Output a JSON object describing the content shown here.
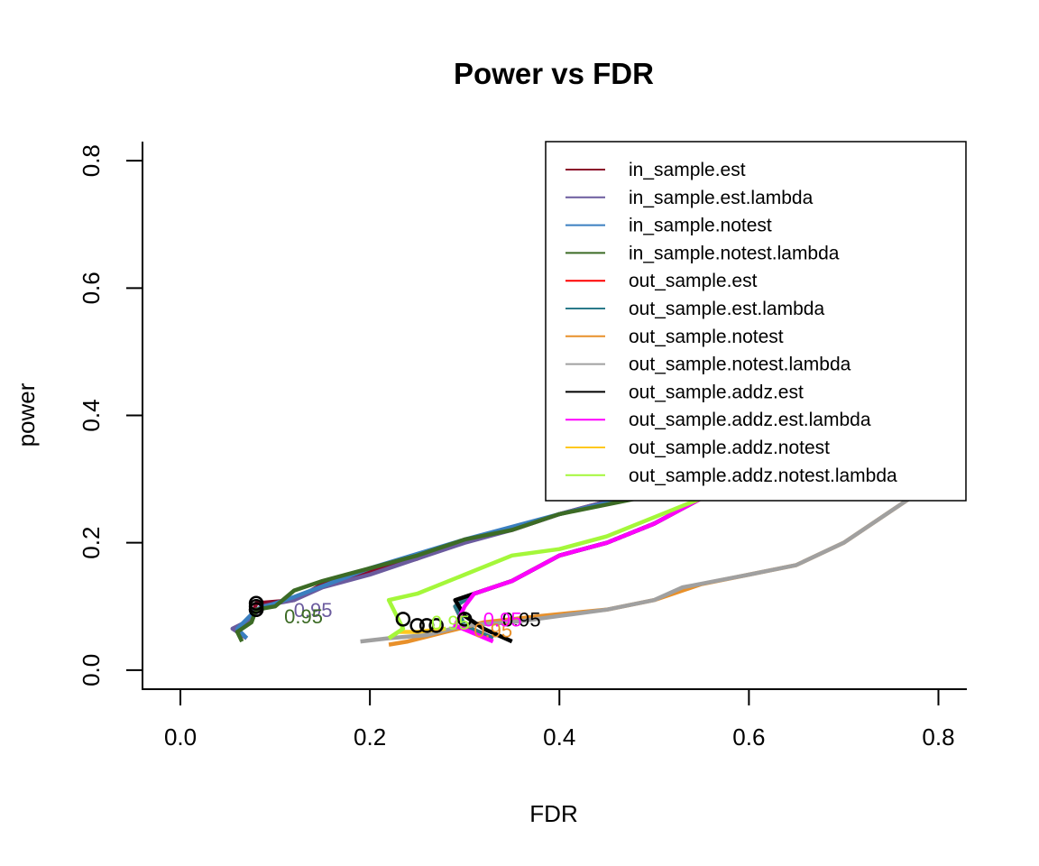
{
  "chart_data": {
    "type": "line",
    "title": "Power vs FDR",
    "xlabel": "FDR",
    "ylabel": "power",
    "xlim": [
      -0.04,
      0.83
    ],
    "ylim": [
      -0.03,
      0.83
    ],
    "xticks": [
      "0.0",
      "0.2",
      "0.4",
      "0.6",
      "0.8"
    ],
    "xtick_values": [
      0.0,
      0.2,
      0.4,
      0.6,
      0.8
    ],
    "yticks": [
      "0.0",
      "0.2",
      "0.4",
      "0.6",
      "0.8"
    ],
    "ytick_values": [
      0.0,
      0.2,
      0.4,
      0.6,
      0.8
    ],
    "legend_position": "top-right",
    "series": [
      {
        "name": "in_sample.est",
        "color": "#8B0A2A",
        "x": [
          0.07,
          0.06,
          0.075,
          0.08,
          0.12,
          0.15,
          0.2,
          0.25,
          0.3,
          0.35,
          0.4,
          0.45,
          0.5,
          0.55
        ],
        "y": [
          0.05,
          0.06,
          0.08,
          0.105,
          0.11,
          0.135,
          0.155,
          0.175,
          0.205,
          0.22,
          0.245,
          0.265,
          0.28,
          0.29
        ],
        "marker": [
          0.08,
          0.105
        ],
        "marker_label": "",
        "label_pos": [
          0.14,
          0.095
        ]
      },
      {
        "name": "in_sample.est.lambda",
        "color": "#6B5B9E",
        "x": [
          0.07,
          0.055,
          0.075,
          0.085,
          0.12,
          0.15,
          0.2,
          0.25,
          0.3,
          0.35,
          0.4,
          0.45,
          0.5,
          0.55
        ],
        "y": [
          0.05,
          0.065,
          0.08,
          0.1,
          0.11,
          0.13,
          0.15,
          0.175,
          0.2,
          0.22,
          0.245,
          0.265,
          0.28,
          0.29
        ],
        "marker": [
          0.08,
          0.1
        ],
        "marker_label": "0.95",
        "label_pos": [
          0.14,
          0.095
        ]
      },
      {
        "name": "in_sample.notest",
        "color": "#3A7FC0",
        "x": [
          0.07,
          0.06,
          0.08,
          0.12,
          0.2,
          0.3,
          0.4,
          0.5,
          0.55
        ],
        "y": [
          0.05,
          0.065,
          0.095,
          0.115,
          0.16,
          0.205,
          0.245,
          0.28,
          0.29
        ],
        "marker": [
          0.08,
          0.095
        ],
        "marker_label": "",
        "label_pos": [
          0.13,
          0.085
        ]
      },
      {
        "name": "in_sample.notest.lambda",
        "color": "#3C6B25",
        "x": [
          0.065,
          0.06,
          0.075,
          0.08,
          0.1,
          0.12,
          0.15,
          0.2,
          0.25,
          0.3,
          0.35,
          0.4,
          0.45,
          0.5,
          0.55
        ],
        "y": [
          0.045,
          0.06,
          0.075,
          0.095,
          0.1,
          0.125,
          0.14,
          0.16,
          0.18,
          0.205,
          0.22,
          0.245,
          0.26,
          0.275,
          0.29
        ],
        "marker": [
          0.08,
          0.095
        ],
        "marker_label": "0.95",
        "label_pos": [
          0.13,
          0.085
        ]
      },
      {
        "name": "out_sample.est",
        "color": "#FF0000",
        "x": [
          0.33,
          0.3,
          0.29,
          0.31,
          0.35,
          0.4,
          0.45,
          0.5,
          0.55
        ],
        "y": [
          0.05,
          0.07,
          0.1,
          0.12,
          0.14,
          0.18,
          0.2,
          0.23,
          0.27
        ],
        "marker": [],
        "marker_label": "",
        "label_pos": []
      },
      {
        "name": "out_sample.est.lambda",
        "color": "#2A7A8A",
        "x": [
          0.33,
          0.3,
          0.29,
          0.31,
          0.35,
          0.4,
          0.45,
          0.5,
          0.55
        ],
        "y": [
          0.05,
          0.07,
          0.1,
          0.12,
          0.14,
          0.18,
          0.2,
          0.23,
          0.27
        ],
        "marker": [],
        "marker_label": "",
        "label_pos": []
      },
      {
        "name": "out_sample.notest",
        "color": "#E8902A",
        "x": [
          0.22,
          0.24,
          0.28,
          0.32,
          0.38,
          0.45,
          0.5,
          0.55,
          0.6,
          0.65,
          0.7,
          0.75,
          0.8
        ],
        "y": [
          0.04,
          0.045,
          0.06,
          0.075,
          0.085,
          0.095,
          0.11,
          0.135,
          0.15,
          0.165,
          0.2,
          0.25,
          0.3
        ],
        "marker": [
          0.27,
          0.07
        ],
        "marker_label": "0.95",
        "label_pos": [
          0.33,
          0.063
        ]
      },
      {
        "name": "out_sample.notest.lambda",
        "color": "#A0A0A0",
        "x": [
          0.19,
          0.22,
          0.26,
          0.3,
          0.35,
          0.4,
          0.45,
          0.5,
          0.53,
          0.6,
          0.65,
          0.7,
          0.75,
          0.8
        ],
        "y": [
          0.045,
          0.05,
          0.055,
          0.07,
          0.075,
          0.085,
          0.095,
          0.11,
          0.13,
          0.15,
          0.165,
          0.2,
          0.25,
          0.3
        ],
        "marker": [
          0.26,
          0.07
        ],
        "marker_label": "",
        "label_pos": []
      },
      {
        "name": "out_sample.addz.est",
        "color": "#000000",
        "x": [
          0.35,
          0.32,
          0.3,
          0.29,
          0.31,
          0.35,
          0.4,
          0.45,
          0.5,
          0.55
        ],
        "y": [
          0.045,
          0.065,
          0.085,
          0.11,
          0.12,
          0.14,
          0.18,
          0.2,
          0.23,
          0.27
        ],
        "marker": [
          0.25,
          0.07
        ],
        "marker_label": "0.95",
        "label_pos": [
          0.36,
          0.08
        ]
      },
      {
        "name": "out_sample.addz.est.lambda",
        "color": "#FF00FF",
        "x": [
          0.33,
          0.29,
          0.3,
          0.31,
          0.35,
          0.4,
          0.45,
          0.5,
          0.55
        ],
        "y": [
          0.045,
          0.07,
          0.1,
          0.12,
          0.14,
          0.18,
          0.2,
          0.23,
          0.27
        ],
        "marker": [
          0.3,
          0.08
        ],
        "marker_label": "0.95",
        "label_pos": [
          0.34,
          0.08
        ]
      },
      {
        "name": "out_sample.addz.notest",
        "color": "#FFC81E",
        "x": [
          0.22,
          0.23,
          0.25,
          0.28
        ],
        "y": [
          0.05,
          0.06,
          0.06,
          0.065
        ],
        "marker": [],
        "marker_label": "",
        "label_pos": []
      },
      {
        "name": "out_sample.addz.notest.lambda",
        "color": "#A4F73A",
        "x": [
          0.22,
          0.235,
          0.22,
          0.25,
          0.3,
          0.35,
          0.4,
          0.45,
          0.5,
          0.55
        ],
        "y": [
          0.05,
          0.065,
          0.11,
          0.12,
          0.15,
          0.18,
          0.19,
          0.21,
          0.24,
          0.27
        ],
        "marker": [
          0.235,
          0.08
        ],
        "marker_label": "0.95",
        "label_pos": [
          0.285,
          0.075
        ]
      }
    ]
  }
}
